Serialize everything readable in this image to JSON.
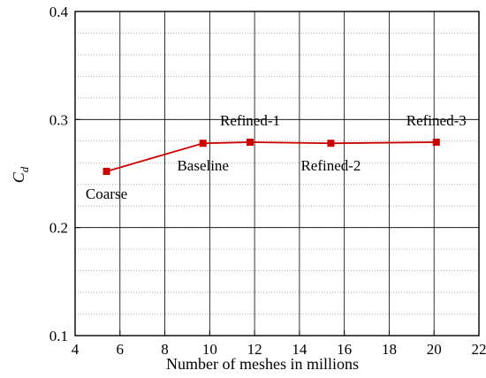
{
  "chart_data": {
    "type": "line",
    "xlabel": "Number of meshes in millions",
    "ylabel": "C",
    "ylabel_subscript": "d",
    "xlim": [
      4,
      22
    ],
    "ylim": [
      0.1,
      0.4
    ],
    "x_major_ticks": [
      4,
      6,
      8,
      10,
      12,
      14,
      16,
      18,
      20,
      22
    ],
    "y_major_ticks": [
      0.1,
      0.2,
      0.3,
      0.4
    ],
    "x_tick_labels": [
      "4",
      "6",
      "8",
      "10",
      "12",
      "14",
      "16",
      "18",
      "20",
      "22"
    ],
    "y_tick_labels": [
      "0.1",
      "0.2",
      "0.3",
      "0.4"
    ],
    "y_minor_step": 0.02,
    "grid": "solid vertical at major x ticks; dotted horizontal at minor y ticks",
    "series": [
      {
        "x": [
          5.4,
          9.7,
          11.8,
          15.4,
          20.1
        ],
        "y": [
          0.252,
          0.278,
          0.279,
          0.278,
          0.279
        ],
        "labels": [
          "Coarse",
          "Baseline",
          "Refined-1",
          "Refined-2",
          "Refined-3"
        ],
        "label_positions": [
          "below",
          "below",
          "above",
          "below",
          "above"
        ],
        "color": "#cc0000",
        "marker": "square"
      }
    ]
  }
}
